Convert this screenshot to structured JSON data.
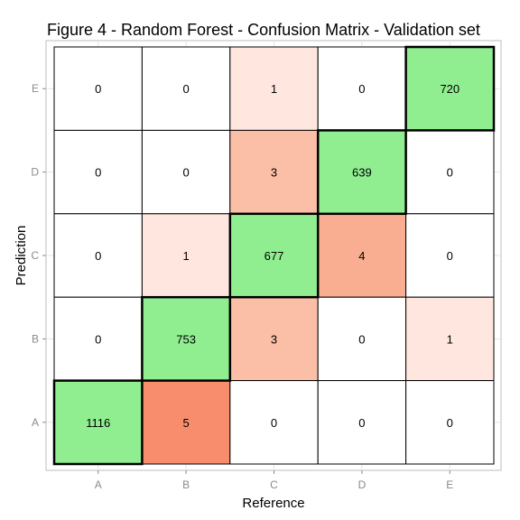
{
  "chart_data": {
    "type": "heatmap",
    "title": "Figure 4 - Random Forest - Confusion Matrix - Validation set",
    "xlabel": "Reference",
    "ylabel": "Prediction",
    "x_categories": [
      "A",
      "B",
      "C",
      "D",
      "E"
    ],
    "y_categories": [
      "A",
      "B",
      "C",
      "D",
      "E"
    ],
    "cells": [
      {
        "prediction": "E",
        "reference": "A",
        "value": 0
      },
      {
        "prediction": "E",
        "reference": "B",
        "value": 0
      },
      {
        "prediction": "E",
        "reference": "C",
        "value": 1
      },
      {
        "prediction": "E",
        "reference": "D",
        "value": 0
      },
      {
        "prediction": "E",
        "reference": "E",
        "value": 720
      },
      {
        "prediction": "D",
        "reference": "A",
        "value": 0
      },
      {
        "prediction": "D",
        "reference": "B",
        "value": 0
      },
      {
        "prediction": "D",
        "reference": "C",
        "value": 3
      },
      {
        "prediction": "D",
        "reference": "D",
        "value": 639
      },
      {
        "prediction": "D",
        "reference": "E",
        "value": 0
      },
      {
        "prediction": "C",
        "reference": "A",
        "value": 0
      },
      {
        "prediction": "C",
        "reference": "B",
        "value": 1
      },
      {
        "prediction": "C",
        "reference": "C",
        "value": 677
      },
      {
        "prediction": "C",
        "reference": "D",
        "value": 4
      },
      {
        "prediction": "C",
        "reference": "E",
        "value": 0
      },
      {
        "prediction": "B",
        "reference": "A",
        "value": 0
      },
      {
        "prediction": "B",
        "reference": "B",
        "value": 753
      },
      {
        "prediction": "B",
        "reference": "C",
        "value": 3
      },
      {
        "prediction": "B",
        "reference": "D",
        "value": 0
      },
      {
        "prediction": "B",
        "reference": "E",
        "value": 1
      },
      {
        "prediction": "A",
        "reference": "A",
        "value": 1116
      },
      {
        "prediction": "A",
        "reference": "B",
        "value": 5
      },
      {
        "prediction": "A",
        "reference": "C",
        "value": 0
      },
      {
        "prediction": "A",
        "reference": "D",
        "value": 0
      },
      {
        "prediction": "A",
        "reference": "E",
        "value": 0
      }
    ],
    "grid": true,
    "legend": "none"
  },
  "colors": {
    "correct": "#90ee90",
    "zero": "#ffffff",
    "error_1": "#ffe6de",
    "error_3": "#fbbea6",
    "error_4": "#f9ae92",
    "error_5": "#f88d6e",
    "panel_border": "#bdbdbd",
    "grid_line": "#e6e6e6"
  }
}
